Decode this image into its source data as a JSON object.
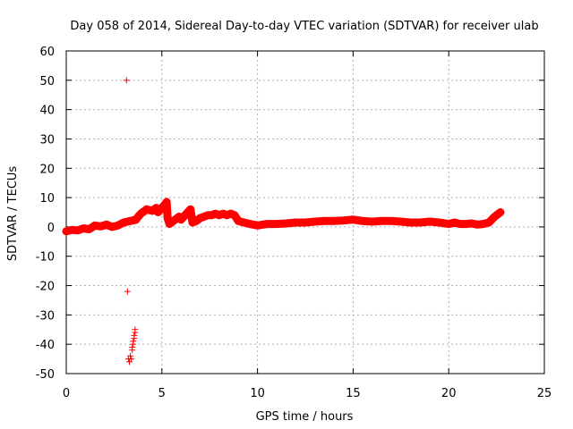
{
  "chart_data": {
    "type": "scatter",
    "title": "Day 058 of 2014, Sidereal Day-to-day VTEC variation (SDTVAR) for receiver ulab",
    "xlabel": "GPS time / hours",
    "ylabel": "SDTVAR / TECUs",
    "xlim": [
      0,
      25
    ],
    "ylim": [
      -50,
      60
    ],
    "xticks": [
      0,
      5,
      10,
      15,
      20,
      25
    ],
    "yticks": [
      -50,
      -40,
      -30,
      -20,
      -10,
      0,
      10,
      20,
      30,
      40,
      50,
      60
    ],
    "x_tick_labels": [
      "0",
      "5",
      "10",
      "15",
      "20",
      "25"
    ],
    "y_tick_labels": [
      "-50",
      "-40",
      "-30",
      "-20",
      "-10",
      "0",
      "10",
      "20",
      "30",
      "40",
      "50",
      "60"
    ],
    "grid": true,
    "marker": "plus",
    "color": "#ff0000",
    "series": [
      {
        "name": "SDTVAR",
        "x": [
          0.0,
          0.3,
          0.6,
          0.9,
          1.2,
          1.5,
          1.8,
          2.1,
          2.4,
          2.7,
          3.0,
          3.15,
          3.2,
          3.25,
          3.3,
          3.35,
          3.4,
          3.45,
          3.45,
          3.5,
          3.5,
          3.55,
          3.55,
          3.6,
          3.6,
          3.65,
          3.7,
          3.9,
          4.0,
          4.1,
          4.2,
          4.5,
          4.7,
          4.8,
          5.2,
          5.25,
          5.3,
          5.35,
          5.4,
          5.9,
          6.0,
          6.5,
          6.6,
          6.8,
          7.0,
          7.2,
          7.4,
          7.6,
          7.8,
          8.0,
          8.2,
          8.4,
          8.6,
          8.8,
          9.0,
          9.3,
          9.6,
          10.0,
          10.5,
          11.0,
          11.5,
          12.0,
          12.5,
          13.0,
          13.5,
          14.0,
          14.5,
          15.0,
          15.5,
          16.0,
          16.5,
          17.0,
          17.5,
          18.0,
          18.5,
          19.0,
          19.5,
          20.0,
          20.3,
          20.6,
          20.9,
          21.2,
          21.5,
          21.8,
          22.1,
          22.4,
          22.5,
          22.6,
          22.7
        ],
        "y": [
          -1.5,
          -1.0,
          -1.2,
          -0.5,
          -0.8,
          0.5,
          0.2,
          0.8,
          0.0,
          0.5,
          1.5,
          50.0,
          -22.0,
          -45.0,
          -46.0,
          -44.0,
          -45.0,
          -42.0,
          -41.0,
          -40.0,
          -39.0,
          -38.0,
          -37.0,
          -36.0,
          -35.0,
          2.5,
          3.0,
          4.5,
          5.0,
          5.5,
          6.0,
          5.5,
          6.5,
          5.0,
          8.0,
          8.5,
          3.0,
          2.0,
          1.0,
          3.5,
          2.5,
          6.0,
          1.5,
          2.0,
          3.0,
          3.5,
          4.0,
          4.0,
          4.5,
          4.0,
          4.5,
          4.0,
          4.5,
          4.0,
          2.0,
          1.5,
          1.0,
          0.5,
          1.0,
          1.0,
          1.2,
          1.5,
          1.5,
          1.8,
          2.0,
          2.0,
          2.2,
          2.5,
          2.0,
          1.8,
          2.0,
          2.0,
          1.8,
          1.5,
          1.5,
          1.8,
          1.5,
          1.0,
          1.5,
          1.0,
          1.0,
          1.2,
          0.8,
          1.0,
          1.5,
          3.5,
          4.0,
          4.5,
          5.0
        ]
      }
    ]
  }
}
